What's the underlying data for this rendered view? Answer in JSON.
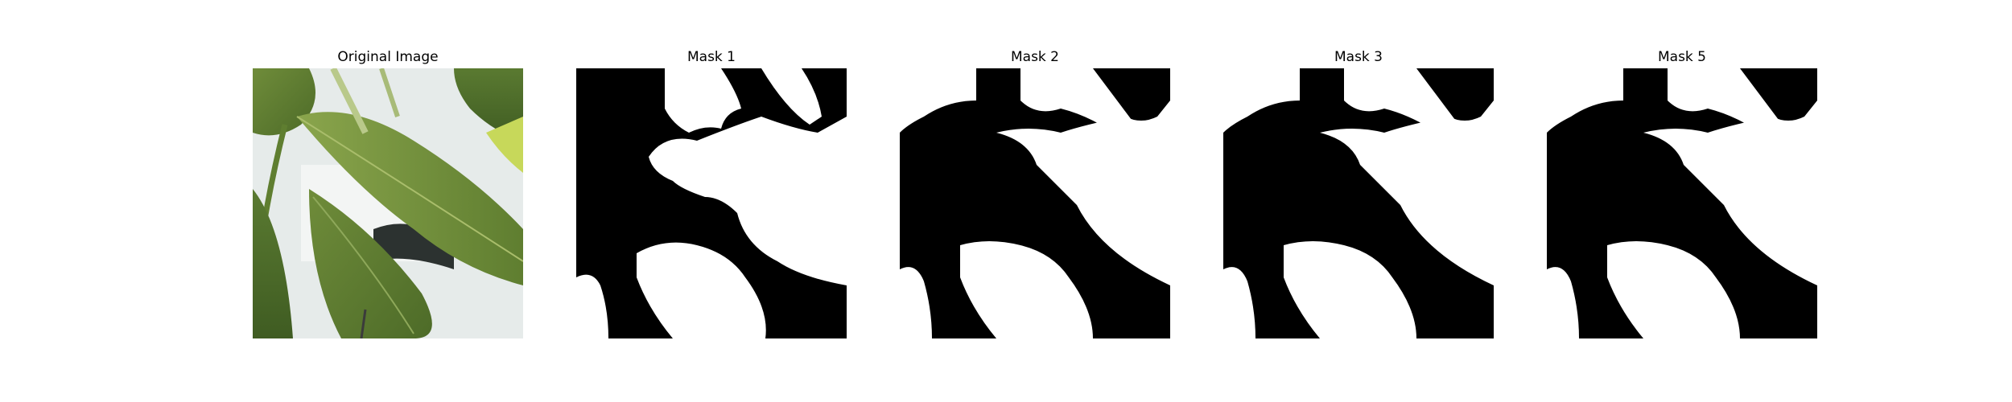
{
  "panels": [
    {
      "id": "original",
      "title": "Original Image",
      "type": "photo"
    },
    {
      "id": "mask1",
      "title": "Mask 1",
      "type": "mask"
    },
    {
      "id": "mask2",
      "title": "Mask 2",
      "type": "mask"
    },
    {
      "id": "mask3",
      "title": "Mask 3",
      "type": "mask"
    },
    {
      "id": "mask5",
      "title": "Mask 5",
      "type": "mask"
    }
  ],
  "colors": {
    "background": "#ffffff",
    "mask_foreground": "#ffffff",
    "mask_background": "#000000",
    "leaf_dark": "#4e6d2b",
    "leaf_light": "#7f9a45",
    "wall": "#e8ecec"
  }
}
